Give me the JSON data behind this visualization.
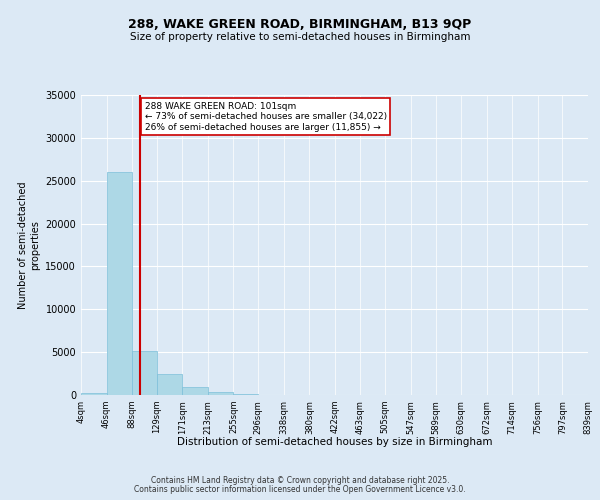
{
  "title1": "288, WAKE GREEN ROAD, BIRMINGHAM, B13 9QP",
  "title2": "Size of property relative to semi-detached houses in Birmingham",
  "xlabel": "Distribution of semi-detached houses by size in Birmingham",
  "ylabel": "Number of semi-detached\nproperties",
  "bins": [
    4,
    46,
    88,
    129,
    171,
    213,
    255,
    296,
    338,
    380,
    422,
    463,
    505,
    547,
    589,
    630,
    672,
    714,
    756,
    797,
    839
  ],
  "bin_labels": [
    "4sqm",
    "46sqm",
    "88sqm",
    "129sqm",
    "171sqm",
    "213sqm",
    "255sqm",
    "296sqm",
    "338sqm",
    "380sqm",
    "422sqm",
    "463sqm",
    "505sqm",
    "547sqm",
    "589sqm",
    "630sqm",
    "672sqm",
    "714sqm",
    "756sqm",
    "797sqm",
    "839sqm"
  ],
  "values": [
    200,
    26000,
    5100,
    2500,
    950,
    300,
    100,
    30,
    10,
    5,
    2,
    1,
    0,
    0,
    0,
    0,
    0,
    0,
    0,
    0
  ],
  "bar_color": "#add8e6",
  "bar_edgecolor": "#7dbfda",
  "property_size": 101,
  "property_label": "288 WAKE GREEN ROAD: 101sqm",
  "pct_smaller": 73,
  "pct_larger": 26,
  "n_smaller": 34022,
  "n_larger": 11855,
  "redline_color": "#cc0000",
  "ylim": [
    0,
    35000
  ],
  "yticks": [
    0,
    5000,
    10000,
    15000,
    20000,
    25000,
    30000,
    35000
  ],
  "footer1": "Contains HM Land Registry data © Crown copyright and database right 2025.",
  "footer2": "Contains public sector information licensed under the Open Government Licence v3.0.",
  "background_color": "#dce9f5",
  "plot_bg": "#dce9f5"
}
